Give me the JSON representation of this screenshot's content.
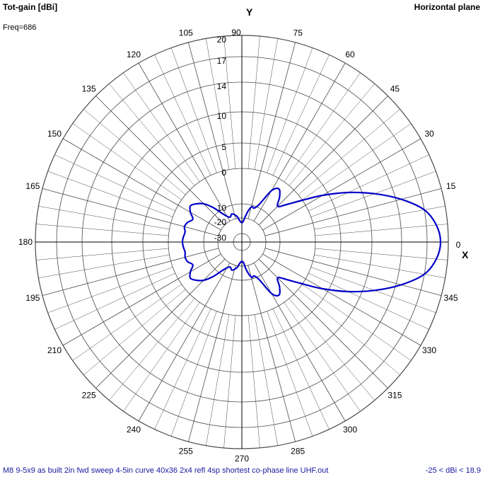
{
  "header": {
    "title": "Tot-gain [dBi]",
    "plane": "Horizontal plane",
    "freq": "Freq=686"
  },
  "footer": {
    "file": "M8 9-5x9 as built 2in fwd sweep 4-5in curve 40x36 2x4 refl 4sp shortest co-phase line UHF.out",
    "range": "-25 < dBi < 18.9"
  },
  "colors": {
    "pattern": "#0000c8",
    "grid": "#4a4a4a",
    "axis": "#000000"
  },
  "chart_data": {
    "type": "polar-line",
    "angle_unit": "deg",
    "radial_unit": "dBi",
    "x_axis_label": "X",
    "y_axis_label": "Y",
    "radial_ticks": [
      -30,
      -20,
      -10,
      0,
      5,
      10,
      14,
      17,
      20
    ],
    "radial_tick_labels": [
      "-30",
      "-20",
      "-10",
      "0",
      "5",
      "10",
      "14",
      "17",
      "20"
    ],
    "angle_tick_labels": [
      "0",
      "15",
      "30",
      "45",
      "60",
      "75",
      "90",
      "105",
      "120",
      "135",
      "150",
      "165",
      "180",
      "195",
      "210",
      "225",
      "240",
      "255",
      "270",
      "285",
      "300",
      "315",
      "330",
      "345"
    ],
    "range": [
      -25,
      18.9
    ],
    "series": [
      {
        "angles": [
          0,
          5,
          10,
          15,
          20,
          25,
          30,
          35,
          40,
          45,
          50,
          55,
          60,
          65,
          70,
          74,
          78,
          82,
          86,
          90,
          95,
          100,
          105,
          110,
          115,
          120,
          125,
          130,
          135,
          140,
          145,
          150,
          155,
          160,
          165,
          170,
          175,
          180,
          185,
          190,
          195,
          200,
          205,
          210,
          215,
          220,
          225,
          230,
          235,
          240,
          245,
          250,
          255,
          260,
          265,
          270,
          275,
          278,
          282,
          286,
          290,
          295,
          300,
          305,
          310,
          315,
          320,
          325,
          330,
          335,
          340,
          345,
          350,
          355
        ],
        "values": [
          18.9,
          18.4,
          17.0,
          14.6,
          11.5,
          7.9,
          3.9,
          -0.4,
          -4.3,
          -6.5,
          -4.2,
          -2.5,
          -4.0,
          -9.0,
          -11.5,
          -11.0,
          -14.0,
          -18.5,
          -22.0,
          -23.0,
          -22.0,
          -19.0,
          -17.0,
          -16.0,
          -17.5,
          -16.0,
          -12.0,
          -8.0,
          -5.5,
          -4.0,
          -3.0,
          -4.0,
          -5.5,
          -4.5,
          -4.0,
          -4.5,
          -4.2,
          -4.0,
          -4.2,
          -4.5,
          -4.2,
          -4.5,
          -5.5,
          -4.0,
          -3.0,
          -4.0,
          -5.5,
          -8.0,
          -12.0,
          -16.0,
          -17.5,
          -16.0,
          -17.0,
          -19.0,
          -22.0,
          -23.0,
          -22.0,
          -18.5,
          -14.0,
          -11.0,
          -11.5,
          -9.0,
          -4.0,
          -2.5,
          -4.2,
          -6.5,
          -4.3,
          -0.4,
          3.9,
          7.9,
          11.5,
          14.6,
          17.0,
          18.4
        ]
      }
    ]
  }
}
